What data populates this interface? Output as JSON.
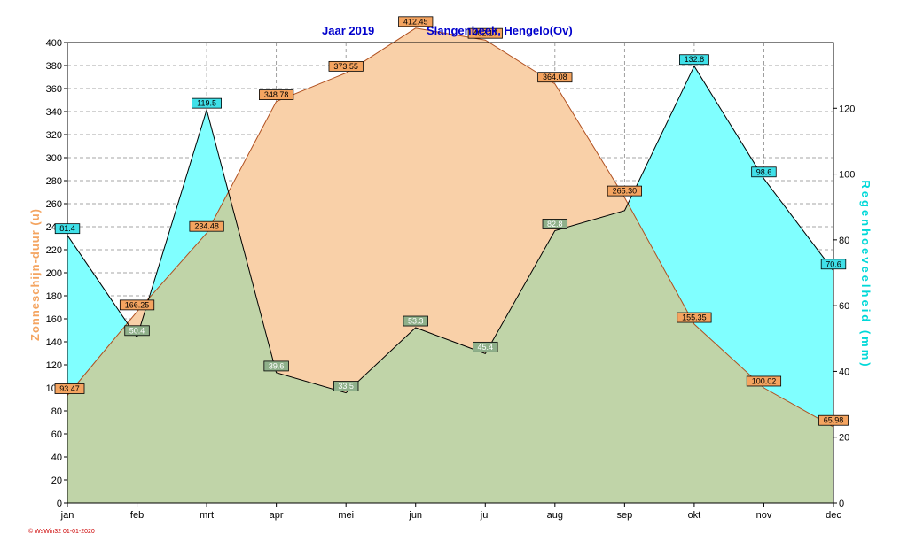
{
  "chart_data": {
    "type": "area",
    "title_parts": [
      "Jaar  2019",
      "Slangenbeek, Hengelo(Ov)"
    ],
    "categories": [
      "jan",
      "feb",
      "mrt",
      "apr",
      "mei",
      "jun",
      "jul",
      "aug",
      "sep",
      "okt",
      "nov",
      "dec"
    ],
    "y_left": {
      "label": "Zonneschijn-duur  (u)",
      "lim": [
        0,
        400
      ],
      "ticks": [
        0,
        20,
        40,
        60,
        80,
        100,
        120,
        140,
        160,
        180,
        200,
        220,
        240,
        260,
        280,
        300,
        320,
        340,
        360,
        380,
        400
      ]
    },
    "y_right": {
      "label": "Regenhoeveelheid  (mm)",
      "lim": [
        0,
        140
      ],
      "ticks": [
        0,
        20,
        40,
        60,
        80,
        100,
        120
      ]
    },
    "grid": true,
    "series": [
      {
        "name": "Zonneschijn-duur",
        "axis": "left",
        "color": "#f9d0a8",
        "label_color": "#f4a460",
        "values": [
          93.47,
          166.25,
          234.48,
          348.78,
          373.55,
          412.45,
          402.17,
          364.08,
          265.3,
          155.35,
          100.02,
          65.98
        ],
        "labels": [
          "93.47",
          "166.25",
          "234.48",
          "348.78",
          "373.55",
          "412.45",
          "402.17",
          "364.08",
          "265.30",
          "155.35",
          "100.02",
          "65.98"
        ]
      },
      {
        "name": "Regenhoeveelheid",
        "axis": "right",
        "color": "#80ffff",
        "label_color": "#40e0e8",
        "values": [
          81.4,
          50.4,
          119.5,
          39.6,
          33.5,
          53.3,
          45.4,
          82.8,
          88.9,
          132.8,
          98.6,
          70.6
        ],
        "labels": [
          "81.4",
          "50.4",
          "119.5",
          "39.6",
          "33.5",
          "53.3",
          "45.4",
          "82.8",
          "",
          "132.8",
          "98.6",
          "70.6"
        ]
      }
    ],
    "overlap_color": "#c0d4a8"
  },
  "footer": "© WsWin32  01-01-2020"
}
